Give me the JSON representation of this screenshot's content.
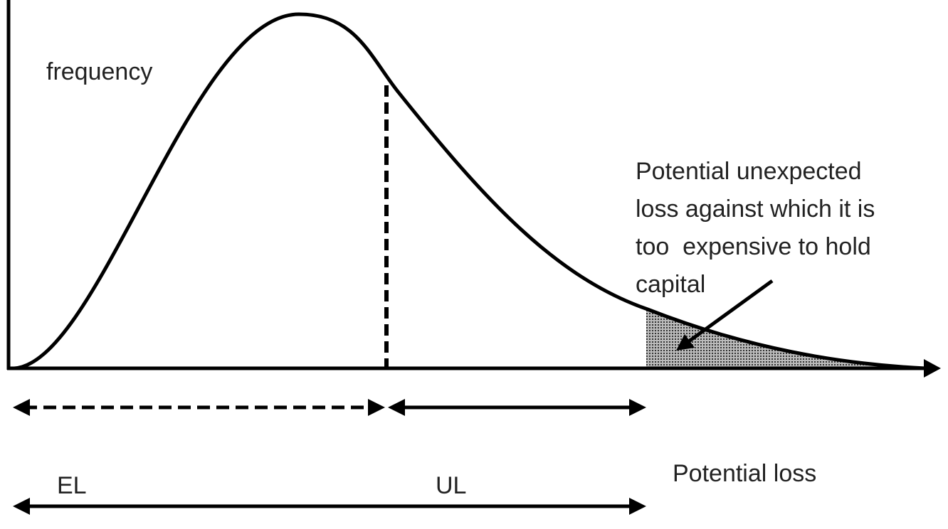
{
  "labels": {
    "y_axis": "frequency",
    "x_axis": "Potential loss",
    "expected": "EL",
    "unexpected": "UL"
  },
  "annotation": {
    "lines": [
      "Potential unexpected",
      "loss against which it is",
      "too  expensive to hold",
      "capital"
    ]
  }
}
